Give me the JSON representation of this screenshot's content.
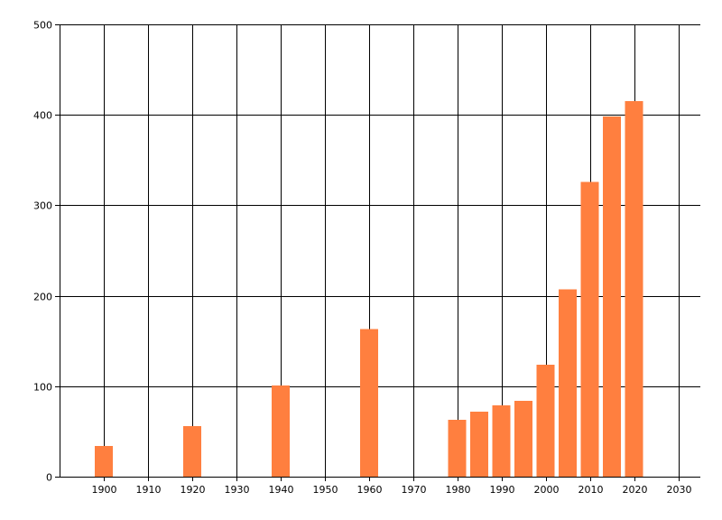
{
  "chart_data": {
    "type": "bar",
    "title": "",
    "xlabel": "",
    "ylabel": "",
    "x": [
      1900,
      1920,
      1940,
      1960,
      1980,
      1985,
      1990,
      1995,
      2000,
      2005,
      2010,
      2015,
      2020
    ],
    "values": [
      34,
      56,
      101,
      163,
      63,
      72,
      79,
      84,
      124,
      207,
      326,
      398,
      415
    ],
    "xlim": [
      1890,
      2035
    ],
    "ylim": [
      0,
      500
    ],
    "x_ticks": [
      1900,
      1910,
      1920,
      1930,
      1940,
      1950,
      1960,
      1970,
      1980,
      1990,
      2000,
      2010,
      2020,
      2030
    ],
    "y_ticks": [
      0,
      100,
      200,
      300,
      400,
      500
    ],
    "grid": true,
    "legend": "none",
    "bar_color": "#ff7f3f"
  }
}
